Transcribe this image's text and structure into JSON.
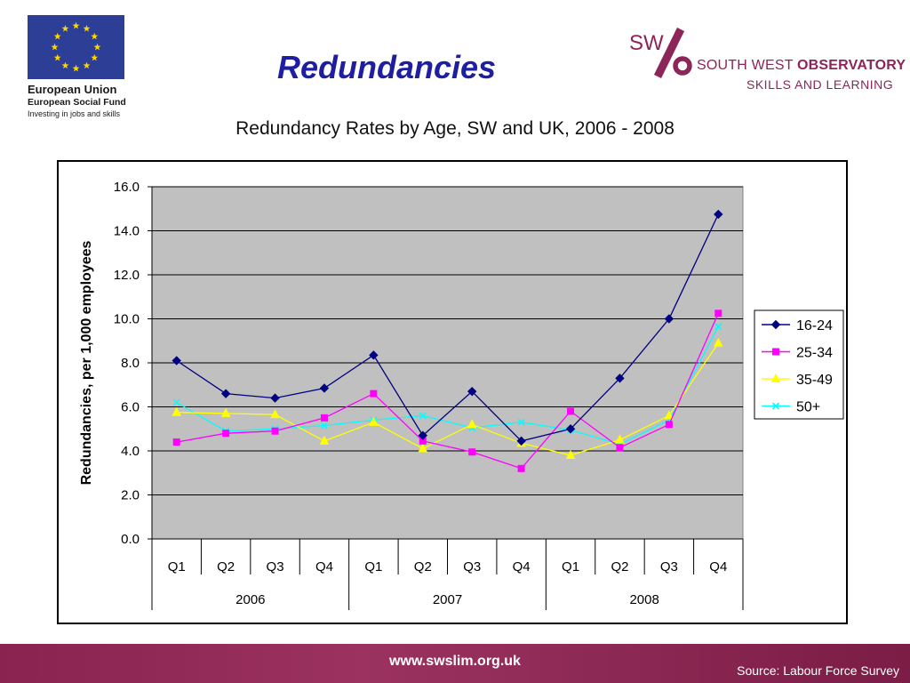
{
  "slide": {
    "title": "Redundancies",
    "url": "www.swslim.org.uk",
    "source": "Source: Labour Force Survey"
  },
  "eu_logo": {
    "line1": "European Union",
    "line2": "European Social Fund",
    "line3": "Investing in jobs and skills",
    "flag_color": "#2c3e95",
    "star_color": "#ffd800"
  },
  "sw_logo": {
    "mark_text": "SW",
    "line1_regular": "SOUTH WEST ",
    "line1_bold": "OBSERVATORY",
    "line2": "SKILLS AND LEARNING",
    "color": "#8c2558"
  },
  "chart_data": {
    "type": "line",
    "title": "Redundancy Rates by Age, SW and UK, 2006 - 2008",
    "ylabel": "Redundancies, per 1,000 employees",
    "ylim": [
      0,
      16
    ],
    "yticks": [
      "0.0",
      "2.0",
      "4.0",
      "6.0",
      "8.0",
      "10.0",
      "12.0",
      "14.0",
      "16.0"
    ],
    "categories": [
      "Q1",
      "Q2",
      "Q3",
      "Q4",
      "Q1",
      "Q2",
      "Q3",
      "Q4",
      "Q1",
      "Q2",
      "Q3",
      "Q4"
    ],
    "groups": [
      "2006",
      "2007",
      "2008"
    ],
    "grid": true,
    "legend_position": "right",
    "plot_background": "#c0c0c0",
    "series": [
      {
        "name": "16-24",
        "color": "#000080",
        "marker": "diamond",
        "values": [
          8.1,
          6.6,
          6.4,
          6.85,
          8.35,
          4.7,
          6.7,
          4.45,
          5.0,
          7.3,
          10.0,
          14.75
        ]
      },
      {
        "name": "25-34",
        "color": "#ff00ff",
        "marker": "square",
        "values": [
          4.4,
          4.8,
          4.9,
          5.5,
          6.6,
          4.45,
          3.95,
          3.2,
          5.8,
          4.15,
          5.2,
          10.25
        ]
      },
      {
        "name": "35-49",
        "color": "#ffff00",
        "marker": "triangle",
        "values": [
          5.75,
          5.7,
          5.65,
          4.45,
          5.3,
          4.1,
          5.2,
          4.35,
          3.8,
          4.5,
          5.6,
          8.9
        ]
      },
      {
        "name": "50+",
        "color": "#00ffff",
        "marker": "x",
        "values": [
          6.2,
          4.9,
          5.0,
          5.15,
          5.4,
          5.6,
          5.05,
          5.3,
          4.95,
          4.3,
          5.4,
          9.65
        ]
      }
    ]
  }
}
